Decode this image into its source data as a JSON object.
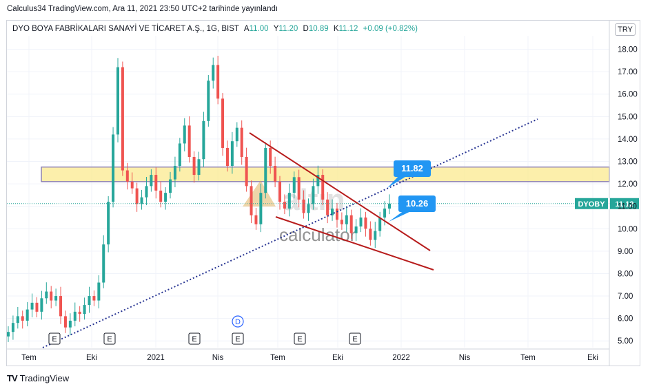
{
  "published_line": "Calculus34 TradingView.com, Ara 11, 2021 23:50 UTC+2 tarihinde yayınlandı",
  "header": {
    "symbol": "DYO BOYA FABRİKALARI SANAYİ VE TİCARET A.Ş., 1G, BIST",
    "open_label": "A",
    "open": "11.00",
    "high_label": "Y",
    "high": "11.20",
    "low_label": "D",
    "low": "10.89",
    "close_label": "K",
    "close": "11.12",
    "change": "+0.09 (+0.82%)"
  },
  "currency_button": "TRY",
  "footer": {
    "logo": "TV",
    "name": "TradingView"
  },
  "colors": {
    "up": "#26a69a",
    "down": "#ef5350",
    "zone_fill": "#fbe98f",
    "zone_border": "#8e82b6",
    "trend_line": "#b71c1c",
    "dotted": "#283593",
    "callout": "#2196f3",
    "price_label": "#26a69a"
  },
  "chart_data": {
    "type": "candlestick",
    "ylim": [
      4.7,
      18.6
    ],
    "y_ticks": [
      "18.00",
      "17.00",
      "16.00",
      "15.00",
      "14.00",
      "13.00",
      "12.00",
      "11.00",
      "10.00",
      "9.00",
      "8.00",
      "7.00",
      "6.00",
      "5.00"
    ],
    "x_ticks": [
      "Tem",
      "Eki",
      "2021",
      "Nis",
      "Tem",
      "Eki",
      "2022",
      "Nis",
      "Tem",
      "Eki"
    ],
    "series_close": [
      5.4,
      5.8,
      6.1,
      5.9,
      6.4,
      6.7,
      6.3,
      6.9,
      7.2,
      6.8,
      7.0,
      6.1,
      5.6,
      5.9,
      6.3,
      6.2,
      6.6,
      7.0,
      6.8,
      7.6,
      9.3,
      11.2,
      14.2,
      17.2,
      12.6,
      12.1,
      11.8,
      11.1,
      11.4,
      11.9,
      12.4,
      11.7,
      11.2,
      11.6,
      12.2,
      12.8,
      13.8,
      14.6,
      13.2,
      12.4,
      13.1,
      14.8,
      16.6,
      17.3,
      15.8,
      13.6,
      12.8,
      13.9,
      14.5,
      13.2,
      11.9,
      10.6,
      10.2,
      11.6,
      13.6,
      12.8,
      12.1,
      11.2,
      10.9,
      11.6,
      12.3,
      11.3,
      10.7,
      11.1,
      11.9,
      12.4,
      11.3,
      10.6,
      10.9,
      10.4,
      10.2,
      10.6,
      9.8,
      10.1,
      10.5,
      10.0,
      9.5,
      9.9,
      10.5,
      10.9,
      11.12
    ],
    "zone": {
      "top": 12.75,
      "bottom": 12.1
    },
    "current_price_label": {
      "symbol": "DYOBY",
      "value": "11.12",
      "price": 11.12
    },
    "callouts": [
      "11.82",
      "10.26"
    ],
    "earnings_markers": [
      "E",
      "E",
      "E",
      "E",
      "E",
      "E"
    ],
    "dividend_marker": "D",
    "watermark": {
      "brand": "altın",
      "sub": "calculator"
    }
  }
}
